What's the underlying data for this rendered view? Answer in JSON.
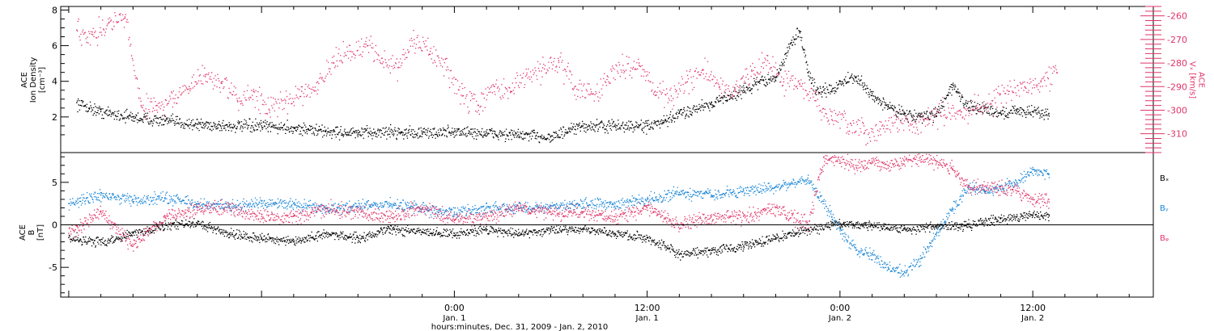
{
  "colors": {
    "black": "#000000",
    "red": "#e0356a",
    "blue": "#1a86d6"
  },
  "chart_data": [
    {
      "type": "scatter",
      "panel": "plasma",
      "ylabel_lines": [
        "ACE",
        "Ion Density",
        "[cm⁻³]"
      ],
      "ylabel_right_lines": [
        "ACE",
        "Vₓ [km/s]"
      ],
      "y_left_range": [
        0,
        8.2
      ],
      "y_left_ticks": [
        2,
        4,
        6,
        8
      ],
      "y_right_range": [
        -318,
        -256
      ],
      "y_right_ticks": [
        -260,
        -270,
        -280,
        -290,
        -300,
        -310
      ],
      "series": [
        {
          "axis": "left",
          "color": "#000000",
          "x": [
            -23.5,
            -22.0,
            -20.0,
            -18.0,
            -16.0,
            -14.0,
            -12.0,
            -10.0,
            -8.0,
            -6.0,
            -4.0,
            -2.0,
            0.0,
            2.0,
            4.0,
            6.0,
            8.0,
            10.0,
            12.0,
            13.0,
            14.0,
            16.0,
            18.0,
            19.0,
            20.0,
            21.0,
            21.5,
            22.0,
            22.5,
            23.0,
            23.5,
            24.0,
            25.0,
            26.0,
            27.0,
            28.0,
            29.0,
            30.0,
            31.0,
            32.0,
            33.0,
            34.0,
            35.0,
            36.0,
            37.0
          ],
          "y": [
            2.8,
            2.3,
            2.0,
            1.8,
            1.6,
            1.5,
            1.5,
            1.4,
            1.2,
            1.1,
            1.2,
            1.1,
            1.2,
            1.1,
            1.0,
            0.9,
            1.5,
            1.5,
            1.5,
            1.7,
            2.2,
            2.8,
            3.5,
            4.0,
            4.2,
            6.3,
            6.8,
            4.5,
            3.5,
            3.5,
            3.5,
            4.0,
            4.2,
            3.2,
            2.6,
            2.2,
            2.0,
            2.2,
            3.8,
            2.5,
            2.5,
            2.2,
            2.4,
            2.3,
            2.2
          ]
        },
        {
          "axis": "right",
          "color": "#e0356a",
          "x": [
            -23.5,
            -22.5,
            -21.5,
            -20.5,
            -19.5,
            -18.5,
            -17.5,
            -16.5,
            -15.5,
            -14.5,
            -13.5,
            -12.5,
            -11.5,
            -10.5,
            -9.5,
            -8.5,
            -7.5,
            -6.5,
            -5.5,
            -4.5,
            -3.5,
            -2.5,
            -1.5,
            -0.5,
            0.5,
            1.5,
            2.5,
            3.5,
            4.5,
            5.5,
            6.5,
            7.5,
            8.5,
            9.5,
            10.5,
            11.5,
            12.5,
            13.5,
            14.5,
            15.5,
            16.5,
            17.5,
            18.5,
            19.5,
            20.5,
            21.5,
            22.5,
            23.5,
            24.5,
            25.5,
            26.5,
            27.5,
            28.5,
            29.5,
            30.5,
            31.5,
            32.5,
            33.5,
            34.5,
            35.5,
            36.5,
            37.5
          ],
          "y": [
            -266,
            -268,
            -263,
            -261,
            -298,
            -298,
            -295,
            -290,
            -285,
            -288,
            -296,
            -292,
            -300,
            -296,
            -292,
            -288,
            -280,
            -275,
            -272,
            -278,
            -282,
            -270,
            -275,
            -283,
            -294,
            -298,
            -290,
            -292,
            -285,
            -282,
            -279,
            -290,
            -293,
            -287,
            -281,
            -280,
            -292,
            -294,
            -288,
            -283,
            -290,
            -292,
            -283,
            -279,
            -288,
            -289,
            -296,
            -304,
            -306,
            -310,
            -308,
            -304,
            -306,
            -304,
            -300,
            -302,
            -298,
            -296,
            -292,
            -290,
            -288,
            -284
          ]
        }
      ]
    },
    {
      "type": "scatter",
      "panel": "magnetic",
      "ylabel_lines": [
        "ACE",
        "B",
        "[nT]"
      ],
      "y_range": [
        -8.5,
        8.5
      ],
      "y_ticks": [
        5,
        0,
        -5
      ],
      "legend": [
        "Bₓ",
        "Bᵧ",
        "Bᵩ"
      ],
      "series": [
        {
          "name": "Bₓ",
          "color": "#000000",
          "x": [
            -24.0,
            -22.0,
            -20.0,
            -18.0,
            -16.0,
            -14.0,
            -12.0,
            -10.0,
            -8.0,
            -6.0,
            -4.0,
            -2.0,
            0.0,
            2.0,
            4.0,
            6.0,
            8.0,
            10.0,
            12.0,
            14.0,
            16.0,
            18.0,
            20.0,
            22.0,
            24.0,
            26.0,
            28.0,
            30.0,
            32.0,
            34.0,
            36.0,
            37.0
          ],
          "y": [
            -1.5,
            -2.0,
            -1.0,
            0.0,
            0.2,
            -1.0,
            -1.5,
            -2.0,
            -1.0,
            -1.5,
            -0.5,
            -0.8,
            -1.0,
            -0.5,
            -1.0,
            -0.5,
            -0.5,
            -1.0,
            -1.5,
            -3.5,
            -3.0,
            -2.5,
            -1.5,
            -0.5,
            0.2,
            0.0,
            -0.5,
            -0.2,
            0.0,
            0.8,
            1.2,
            1.2
          ]
        },
        {
          "name": "Bᵧ",
          "color": "#1a86d6",
          "x": [
            -24.0,
            -22.0,
            -20.0,
            -18.0,
            -16.0,
            -14.0,
            -12.0,
            -10.0,
            -8.0,
            -6.0,
            -4.0,
            -2.0,
            0.0,
            2.0,
            4.0,
            6.0,
            8.0,
            10.0,
            12.0,
            14.0,
            16.0,
            18.0,
            20.0,
            22.0,
            23.5,
            24.0,
            25.0,
            26.0,
            27.0,
            28.0,
            29.0,
            30.0,
            31.0,
            32.0,
            33.0,
            34.0,
            35.0,
            36.0,
            37.0
          ],
          "y": [
            2.5,
            3.5,
            3.0,
            3.2,
            2.5,
            2.2,
            2.5,
            2.5,
            2.0,
            2.2,
            2.5,
            2.0,
            1.5,
            2.0,
            2.0,
            2.2,
            2.5,
            2.5,
            3.0,
            3.8,
            3.5,
            4.0,
            4.5,
            5.5,
            1.0,
            -0.5,
            -3.0,
            -3.5,
            -5.0,
            -5.5,
            -4.0,
            -1.0,
            2.0,
            4.5,
            4.0,
            4.5,
            5.0,
            6.5,
            6.0
          ]
        },
        {
          "name": "Bᵩ",
          "color": "#e0356a",
          "x": [
            -24.0,
            -22.0,
            -20.0,
            -18.0,
            -16.0,
            -14.0,
            -12.0,
            -10.0,
            -8.0,
            -6.0,
            -4.0,
            -2.0,
            0.0,
            2.0,
            4.0,
            6.0,
            8.0,
            10.0,
            12.0,
            14.0,
            16.0,
            18.0,
            20.0,
            22.0,
            23.0,
            24.0,
            25.0,
            26.0,
            27.0,
            28.0,
            29.0,
            30.0,
            31.0,
            32.0,
            33.0,
            34.0,
            35.0,
            36.0,
            37.0
          ],
          "y": [
            -1.0,
            1.5,
            -2.5,
            1.0,
            2.0,
            2.0,
            1.0,
            1.0,
            2.0,
            1.5,
            1.0,
            2.0,
            0.5,
            1.0,
            2.0,
            1.5,
            1.5,
            1.0,
            2.0,
            0.0,
            1.0,
            1.0,
            2.0,
            0.0,
            8.0,
            7.5,
            7.0,
            7.5,
            7.0,
            7.5,
            8.0,
            7.5,
            6.5,
            4.5,
            4.5,
            4.5,
            4.0,
            3.0,
            3.0
          ]
        }
      ]
    }
  ],
  "x_axis": {
    "range": [
      -24.5,
      43.5
    ],
    "major_ticks": [
      {
        "x": 0,
        "top": "0:00",
        "bottom": "Jan. 1"
      },
      {
        "x": 12,
        "top": "12:00",
        "bottom": "Jan. 1"
      },
      {
        "x": 24,
        "top": "0:00",
        "bottom": "Jan. 2"
      },
      {
        "x": 36,
        "top": "12:00",
        "bottom": "Jan. 2"
      }
    ],
    "minor_tick_step_hours": 2,
    "label": "hours:minutes, Dec. 31, 2009 - Jan.  2, 2010"
  }
}
